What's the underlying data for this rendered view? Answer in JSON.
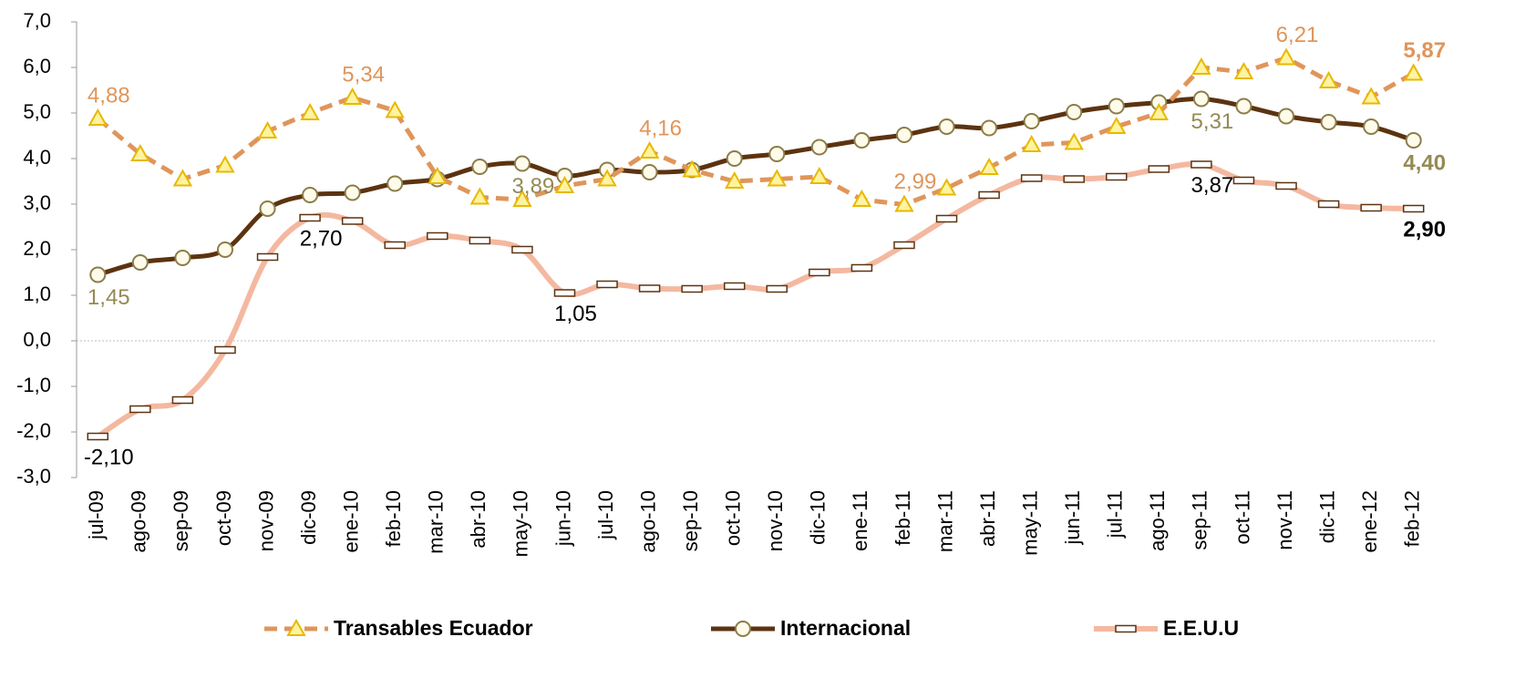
{
  "chart_data": {
    "type": "line",
    "categories": [
      "jul-09",
      "ago-09",
      "sep-09",
      "oct-09",
      "nov-09",
      "dic-09",
      "ene-10",
      "feb-10",
      "mar-10",
      "abr-10",
      "may-10",
      "jun-10",
      "jul-10",
      "ago-10",
      "sep-10",
      "oct-10",
      "nov-10",
      "dic-10",
      "ene-11",
      "feb-11",
      "mar-11",
      "abr-11",
      "may-11",
      "jun-11",
      "jul-11",
      "ago-11",
      "sep-11",
      "oct-11",
      "nov-11",
      "dic-11",
      "ene-12",
      "feb-12"
    ],
    "series": [
      {
        "name": "Transables Ecuador",
        "color": "#e0955a",
        "values": [
          4.88,
          4.1,
          3.55,
          3.85,
          4.6,
          5.0,
          5.34,
          5.05,
          3.6,
          3.15,
          3.1,
          3.4,
          3.55,
          4.16,
          3.75,
          3.5,
          3.55,
          3.6,
          3.1,
          2.99,
          3.35,
          3.8,
          4.3,
          4.35,
          4.7,
          5.0,
          6.0,
          5.9,
          6.21,
          5.7,
          5.35,
          5.87
        ],
        "value_labels": [
          "4,88",
          null,
          null,
          null,
          null,
          null,
          "5,34",
          null,
          null,
          null,
          null,
          null,
          null,
          "4,16",
          null,
          null,
          null,
          null,
          null,
          "2,99",
          null,
          null,
          null,
          null,
          null,
          null,
          null,
          null,
          "6,21",
          null,
          null,
          "5,87"
        ]
      },
      {
        "name": "Internacional",
        "color": "#5c3310",
        "values": [
          1.45,
          1.72,
          1.82,
          2.0,
          2.9,
          3.2,
          3.25,
          3.45,
          3.55,
          3.82,
          3.89,
          3.62,
          3.75,
          3.7,
          3.75,
          4.0,
          4.1,
          4.25,
          4.4,
          4.52,
          4.7,
          4.67,
          4.82,
          5.02,
          5.15,
          5.23,
          5.31,
          5.15,
          4.93,
          4.8,
          4.7,
          4.4
        ],
        "value_labels": [
          "1,45",
          null,
          null,
          null,
          null,
          null,
          null,
          null,
          null,
          null,
          "3,89",
          null,
          null,
          null,
          null,
          null,
          null,
          null,
          null,
          null,
          null,
          null,
          null,
          null,
          null,
          null,
          "5,31",
          null,
          null,
          null,
          null,
          "4,40"
        ]
      },
      {
        "name": "E.E.U.U",
        "color": "#f4b8a0",
        "values": [
          -2.1,
          -1.5,
          -1.3,
          -0.2,
          1.84,
          2.7,
          2.63,
          2.1,
          2.3,
          2.2,
          2.0,
          1.05,
          1.24,
          1.15,
          1.14,
          1.2,
          1.14,
          1.5,
          1.6,
          2.1,
          2.68,
          3.2,
          3.57,
          3.55,
          3.6,
          3.77,
          3.87,
          3.52,
          3.4,
          3.0,
          2.92,
          2.9
        ],
        "value_labels": [
          "-2,10",
          null,
          null,
          null,
          null,
          "2,70",
          null,
          null,
          null,
          null,
          null,
          "1,05",
          null,
          null,
          null,
          null,
          null,
          null,
          null,
          null,
          null,
          null,
          null,
          null,
          null,
          null,
          "3,87",
          null,
          null,
          null,
          null,
          "2,90"
        ]
      }
    ],
    "ylim": [
      -3,
      7
    ],
    "yticks": [
      {
        "value": -3,
        "label": "-3,0"
      },
      {
        "value": -2,
        "label": "-2,0"
      },
      {
        "value": -1,
        "label": "-1,0"
      },
      {
        "value": 0,
        "label": "0,0"
      },
      {
        "value": 1,
        "label": "1,0"
      },
      {
        "value": 2,
        "label": "2,0"
      },
      {
        "value": 3,
        "label": "3,0"
      },
      {
        "value": 4,
        "label": "4,0"
      },
      {
        "value": 5,
        "label": "5,0"
      },
      {
        "value": 6,
        "label": "6,0"
      },
      {
        "value": 7,
        "label": "7,0"
      }
    ],
    "legend": "bottom"
  }
}
